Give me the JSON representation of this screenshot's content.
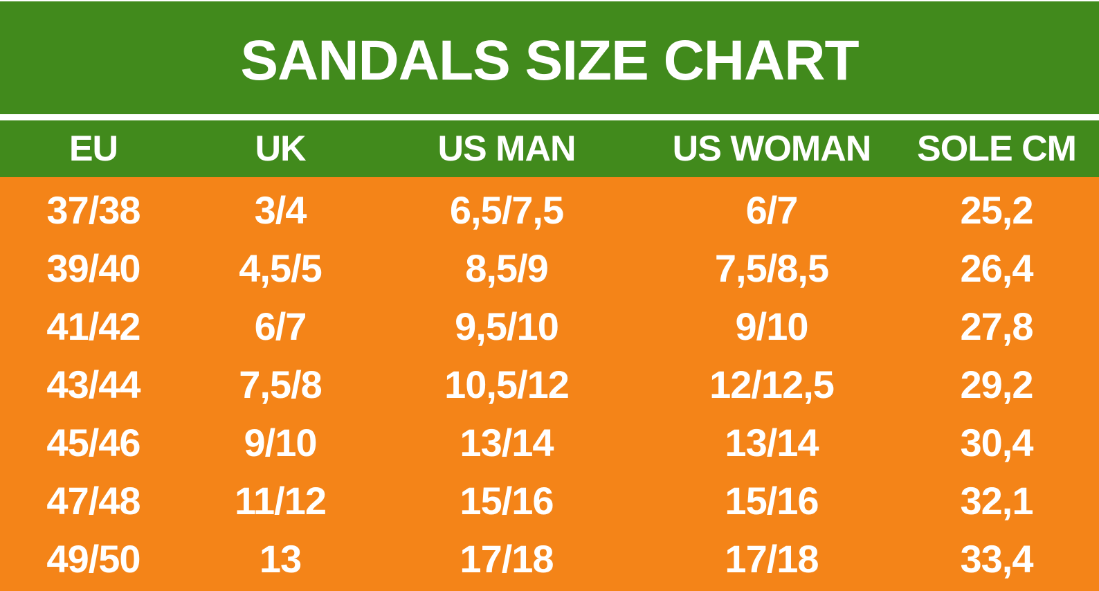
{
  "chart_data": {
    "type": "table",
    "title": "SANDALS SIZE CHART",
    "columns": [
      "EU",
      "UK",
      "US MAN",
      "US WOMAN",
      "SOLE CM"
    ],
    "rows": [
      [
        "37/38",
        "3/4",
        "6,5/7,5",
        "6/7",
        "25,2"
      ],
      [
        "39/40",
        "4,5/5",
        "8,5/9",
        "7,5/8,5",
        "26,4"
      ],
      [
        "41/42",
        "6/7",
        "9,5/10",
        "9/10",
        "27,8"
      ],
      [
        "43/44",
        "7,5/8",
        "10,5/12",
        "12/12,5",
        "29,2"
      ],
      [
        "45/46",
        "9/10",
        "13/14",
        "13/14",
        "30,4"
      ],
      [
        "47/48",
        "11/12",
        "15/16",
        "15/16",
        "32,1"
      ],
      [
        "49/50",
        "13",
        "17/18",
        "17/18",
        "33,4"
      ]
    ]
  },
  "colors": {
    "header_background": "#418a1c",
    "body_background": "#f48418",
    "text": "#ffffff"
  }
}
